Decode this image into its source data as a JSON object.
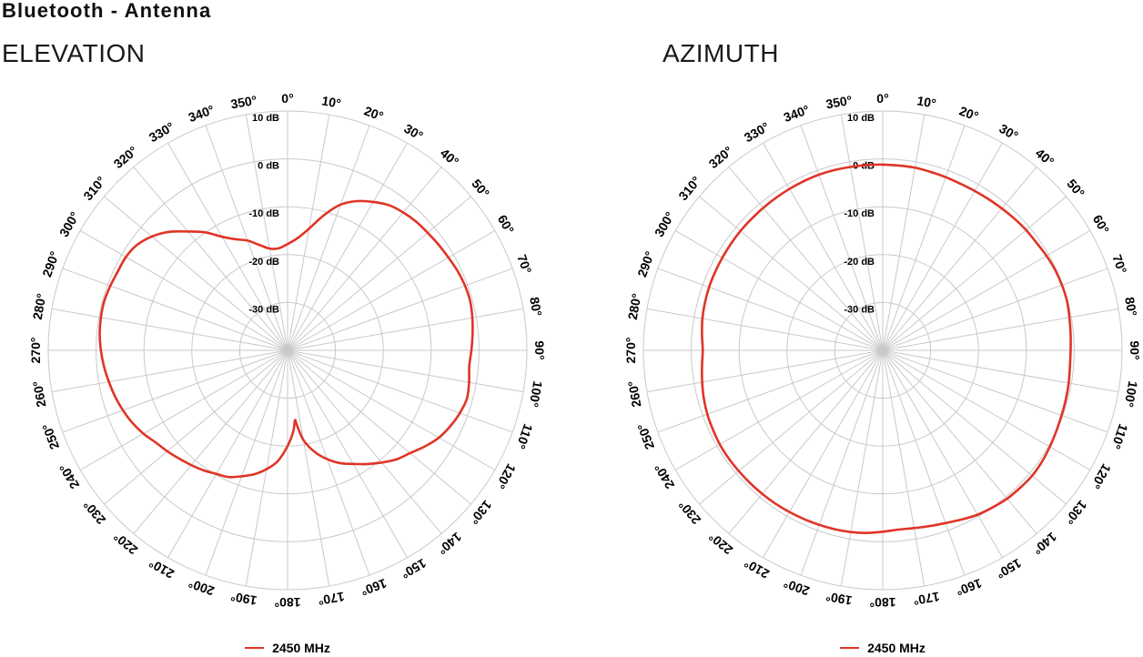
{
  "page": {
    "title": "Bluetooth - Antenna"
  },
  "styles": {
    "accent_red": "#e03427",
    "grid_color": "#c9c9cc",
    "text_color": "#000000",
    "background": "#ffffff"
  },
  "chart_data": [
    {
      "type": "line",
      "subtype": "polar-radiation-pattern",
      "title": "ELEVATION",
      "legend_position": "bottom",
      "grid": true,
      "angle_unit": "deg",
      "angle_tick_suffix": "°",
      "angle_ticks": [
        0,
        10,
        20,
        30,
        40,
        50,
        60,
        70,
        80,
        90,
        100,
        110,
        120,
        130,
        140,
        150,
        160,
        170,
        180,
        190,
        200,
        210,
        220,
        230,
        240,
        250,
        260,
        270,
        280,
        290,
        300,
        310,
        320,
        330,
        340,
        350
      ],
      "radial_tick_suffix": " dB",
      "radial_ticks": [
        10,
        0,
        -10,
        -20,
        -30
      ],
      "radial_range": [
        -40,
        10
      ],
      "series": [
        {
          "name": "2450 MHz",
          "color": "#e03427",
          "points_deg_db": [
            [
              0,
              -17.8
            ],
            [
              5,
              -16.5
            ],
            [
              10,
              -14.2
            ],
            [
              15,
              -10.8
            ],
            [
              20,
              -7.6
            ],
            [
              25,
              -5.6
            ],
            [
              30,
              -4.2
            ],
            [
              35,
              -3.0
            ],
            [
              40,
              -2.4
            ],
            [
              45,
              -2.0
            ],
            [
              50,
              -1.8
            ],
            [
              55,
              -1.5
            ],
            [
              60,
              -1.2
            ],
            [
              65,
              -0.8
            ],
            [
              70,
              -0.55
            ],
            [
              75,
              -0.5
            ],
            [
              80,
              -0.8
            ],
            [
              85,
              -1.2
            ],
            [
              90,
              -1.6
            ],
            [
              95,
              -1.9
            ],
            [
              100,
              -1.5
            ],
            [
              105,
              -1.2
            ],
            [
              110,
              -1.7
            ],
            [
              115,
              -2.5
            ],
            [
              120,
              -3.5
            ],
            [
              125,
              -5.0
            ],
            [
              130,
              -6.6
            ],
            [
              135,
              -7.8
            ],
            [
              140,
              -9.4
            ],
            [
              145,
              -11.0
            ],
            [
              150,
              -12.6
            ],
            [
              155,
              -14.0
            ],
            [
              160,
              -15.8
            ],
            [
              165,
              -18.0
            ],
            [
              170,
              -21.0
            ],
            [
              173,
              -24.4
            ],
            [
              174,
              -25.3
            ],
            [
              176,
              -23.0
            ],
            [
              180,
              -20.0
            ],
            [
              185,
              -16.8
            ],
            [
              190,
              -14.8
            ],
            [
              195,
              -13.2
            ],
            [
              200,
              -12.0
            ],
            [
              205,
              -10.8
            ],
            [
              210,
              -10.2
            ],
            [
              215,
              -9.4
            ],
            [
              220,
              -8.7
            ],
            [
              225,
              -8.0
            ],
            [
              230,
              -7.2
            ],
            [
              235,
              -6.4
            ],
            [
              240,
              -5.2
            ],
            [
              245,
              -4.2
            ],
            [
              250,
              -3.4
            ],
            [
              255,
              -2.7
            ],
            [
              260,
              -2.1
            ],
            [
              265,
              -1.5
            ],
            [
              270,
              -1.0
            ],
            [
              275,
              -0.6
            ],
            [
              280,
              -0.4
            ],
            [
              285,
              -0.35
            ],
            [
              290,
              -0.6
            ],
            [
              295,
              -0.9
            ],
            [
              300,
              -1.0
            ],
            [
              305,
              -1.6
            ],
            [
              310,
              -3.0
            ],
            [
              315,
              -5.0
            ],
            [
              320,
              -7.6
            ],
            [
              325,
              -9.9
            ],
            [
              330,
              -12.6
            ],
            [
              335,
              -14.4
            ],
            [
              340,
              -15.6
            ],
            [
              345,
              -17.2
            ],
            [
              350,
              -18.4
            ],
            [
              355,
              -18.6
            ]
          ]
        }
      ]
    },
    {
      "type": "line",
      "subtype": "polar-radiation-pattern",
      "title": "AZIMUTH",
      "legend_position": "bottom",
      "grid": true,
      "angle_unit": "deg",
      "angle_tick_suffix": "°",
      "angle_ticks": [
        0,
        10,
        20,
        30,
        40,
        50,
        60,
        70,
        80,
        90,
        100,
        110,
        120,
        130,
        140,
        150,
        160,
        170,
        180,
        190,
        200,
        210,
        220,
        230,
        240,
        250,
        260,
        270,
        280,
        290,
        300,
        310,
        320,
        330,
        340,
        350
      ],
      "radial_tick_suffix": " dB",
      "radial_ticks": [
        10,
        0,
        -10,
        -20,
        -30
      ],
      "radial_range": [
        -40,
        10
      ],
      "series": [
        {
          "name": "2450 MHz",
          "color": "#e03427",
          "points_deg_db": [
            [
              0,
              -1.2
            ],
            [
              5,
              -1.25
            ],
            [
              10,
              -1.25
            ],
            [
              15,
              -1.4
            ],
            [
              20,
              -1.5
            ],
            [
              25,
              -1.6
            ],
            [
              30,
              -1.55
            ],
            [
              35,
              -1.45
            ],
            [
              40,
              -1.3
            ],
            [
              45,
              -1.1
            ],
            [
              50,
              -0.9
            ],
            [
              55,
              -0.8
            ],
            [
              60,
              -0.5
            ],
            [
              65,
              -0.25
            ],
            [
              70,
              -0.15
            ],
            [
              75,
              -0.15
            ],
            [
              80,
              -0.4
            ],
            [
              85,
              -0.6
            ],
            [
              90,
              -0.75
            ],
            [
              95,
              -0.75
            ],
            [
              100,
              -0.55
            ],
            [
              105,
              -0.4
            ],
            [
              110,
              -0.25
            ],
            [
              115,
              0.0
            ],
            [
              120,
              0.3
            ],
            [
              125,
              0.6
            ],
            [
              130,
              0.75
            ],
            [
              135,
              0.6
            ],
            [
              140,
              0.45
            ],
            [
              145,
              0.05
            ],
            [
              150,
              -0.35
            ],
            [
              155,
              -1.0
            ],
            [
              160,
              -1.6
            ],
            [
              165,
              -2.0
            ],
            [
              170,
              -2.3
            ],
            [
              175,
              -2.4
            ],
            [
              180,
              -2.1
            ],
            [
              185,
              -1.7
            ],
            [
              190,
              -1.45
            ],
            [
              195,
              -1.3
            ],
            [
              200,
              -1.2
            ],
            [
              205,
              -1.1
            ],
            [
              210,
              -1.0
            ],
            [
              215,
              -0.9
            ],
            [
              220,
              -0.85
            ],
            [
              225,
              -0.8
            ],
            [
              230,
              -0.75
            ],
            [
              235,
              -0.7
            ],
            [
              240,
              -0.7
            ],
            [
              245,
              -0.85
            ],
            [
              250,
              -1.0
            ],
            [
              255,
              -1.3
            ],
            [
              260,
              -1.7
            ],
            [
              265,
              -2.1
            ],
            [
              270,
              -2.4
            ],
            [
              275,
              -2.1
            ],
            [
              280,
              -1.75
            ],
            [
              285,
              -1.55
            ],
            [
              290,
              -1.4
            ],
            [
              295,
              -1.35
            ],
            [
              300,
              -1.3
            ],
            [
              305,
              -1.25
            ],
            [
              310,
              -1.2
            ],
            [
              315,
              -1.2
            ],
            [
              320,
              -1.15
            ],
            [
              325,
              -1.1
            ],
            [
              330,
              -1.05
            ],
            [
              335,
              -1.0
            ],
            [
              340,
              -0.95
            ],
            [
              345,
              -1.0
            ],
            [
              350,
              -1.1
            ],
            [
              355,
              -1.15
            ]
          ]
        }
      ]
    }
  ]
}
